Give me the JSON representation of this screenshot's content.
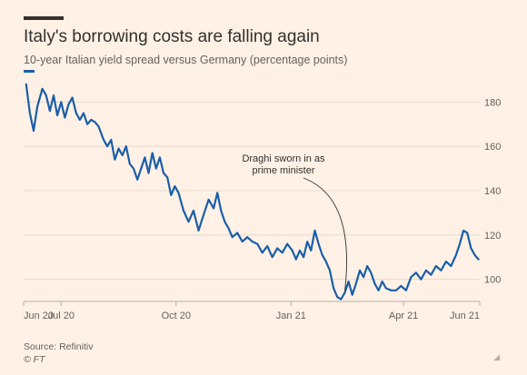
{
  "title": "Italy's borrowing costs are falling again",
  "subtitle": "10-year Italian yield spread versus Germany (percentage points)",
  "source": "Source: Refinitiv",
  "copyright": "© FT",
  "colors": {
    "line": "#1a5ea8",
    "grid": "#e6d9ce",
    "axis_text": "#66605c"
  },
  "chart_data": {
    "type": "line",
    "title": "Italy's borrowing costs are falling again",
    "subtitle": "10-year Italian yield spread versus Germany (percentage points)",
    "xlabel": "",
    "ylabel": "",
    "xlim": [
      "2020-06-01",
      "2021-06-01"
    ],
    "ylim": [
      90,
      190
    ],
    "y_ticks": [
      100,
      120,
      140,
      160,
      180
    ],
    "x_ticks": [
      {
        "label": "Jun 20",
        "date": "2020-06-01"
      },
      {
        "label": "Jul 20",
        "date": "2020-07-01"
      },
      {
        "label": "Oct 20",
        "date": "2020-10-01"
      },
      {
        "label": "Jan 21",
        "date": "2021-01-01"
      },
      {
        "label": "Apr 21",
        "date": "2021-04-01"
      },
      {
        "label": "Jun 21",
        "date": "2021-06-01"
      }
    ],
    "grid": true,
    "series": [
      {
        "color": "#1a5ea8",
        "points": [
          [
            "2020-06-03",
            188
          ],
          [
            "2020-06-06",
            175
          ],
          [
            "2020-06-09",
            167
          ],
          [
            "2020-06-12",
            178
          ],
          [
            "2020-06-16",
            186
          ],
          [
            "2020-06-19",
            183
          ],
          [
            "2020-06-22",
            176
          ],
          [
            "2020-06-25",
            183
          ],
          [
            "2020-06-28",
            174
          ],
          [
            "2020-07-01",
            180
          ],
          [
            "2020-07-04",
            173
          ],
          [
            "2020-07-07",
            179
          ],
          [
            "2020-07-10",
            182
          ],
          [
            "2020-07-13",
            175
          ],
          [
            "2020-07-16",
            172
          ],
          [
            "2020-07-19",
            175
          ],
          [
            "2020-07-22",
            170
          ],
          [
            "2020-07-25",
            172
          ],
          [
            "2020-07-28",
            171
          ],
          [
            "2020-07-31",
            169
          ],
          [
            "2020-08-04",
            163
          ],
          [
            "2020-08-07",
            160
          ],
          [
            "2020-08-10",
            163
          ],
          [
            "2020-08-13",
            154
          ],
          [
            "2020-08-16",
            159
          ],
          [
            "2020-08-19",
            156
          ],
          [
            "2020-08-22",
            160
          ],
          [
            "2020-08-25",
            152
          ],
          [
            "2020-08-28",
            150
          ],
          [
            "2020-08-31",
            145
          ],
          [
            "2020-09-03",
            150
          ],
          [
            "2020-09-06",
            155
          ],
          [
            "2020-09-09",
            148
          ],
          [
            "2020-09-12",
            157
          ],
          [
            "2020-09-15",
            150
          ],
          [
            "2020-09-18",
            155
          ],
          [
            "2020-09-21",
            148
          ],
          [
            "2020-09-24",
            146
          ],
          [
            "2020-09-27",
            138
          ],
          [
            "2020-09-30",
            142
          ],
          [
            "2020-10-03",
            139
          ],
          [
            "2020-10-07",
            131
          ],
          [
            "2020-10-11",
            126
          ],
          [
            "2020-10-15",
            131
          ],
          [
            "2020-10-19",
            122
          ],
          [
            "2020-10-23",
            129
          ],
          [
            "2020-10-27",
            136
          ],
          [
            "2020-10-31",
            132
          ],
          [
            "2020-11-03",
            139
          ],
          [
            "2020-11-06",
            131
          ],
          [
            "2020-11-09",
            126
          ],
          [
            "2020-11-12",
            123
          ],
          [
            "2020-11-15",
            119
          ],
          [
            "2020-11-19",
            121
          ],
          [
            "2020-11-23",
            117
          ],
          [
            "2020-11-27",
            119
          ],
          [
            "2020-12-01",
            117
          ],
          [
            "2020-12-05",
            116
          ],
          [
            "2020-12-09",
            112
          ],
          [
            "2020-12-13",
            115
          ],
          [
            "2020-12-17",
            110
          ],
          [
            "2020-12-21",
            114
          ],
          [
            "2020-12-25",
            112
          ],
          [
            "2020-12-29",
            116
          ],
          [
            "2021-01-02",
            113
          ],
          [
            "2021-01-05",
            109
          ],
          [
            "2021-01-08",
            113
          ],
          [
            "2021-01-11",
            110
          ],
          [
            "2021-01-14",
            117
          ],
          [
            "2021-01-17",
            113
          ],
          [
            "2021-01-20",
            122
          ],
          [
            "2021-01-23",
            116
          ],
          [
            "2021-01-26",
            111
          ],
          [
            "2021-01-29",
            108
          ],
          [
            "2021-02-01",
            104
          ],
          [
            "2021-02-04",
            96
          ],
          [
            "2021-02-07",
            92
          ],
          [
            "2021-02-10",
            91
          ],
          [
            "2021-02-13",
            94
          ],
          [
            "2021-02-16",
            99
          ],
          [
            "2021-02-19",
            93
          ],
          [
            "2021-02-22",
            98
          ],
          [
            "2021-02-25",
            104
          ],
          [
            "2021-02-28",
            101
          ],
          [
            "2021-03-03",
            106
          ],
          [
            "2021-03-06",
            103
          ],
          [
            "2021-03-09",
            98
          ],
          [
            "2021-03-12",
            95
          ],
          [
            "2021-03-15",
            99
          ],
          [
            "2021-03-18",
            96
          ],
          [
            "2021-03-22",
            95
          ],
          [
            "2021-03-26",
            95
          ],
          [
            "2021-03-30",
            97
          ],
          [
            "2021-04-03",
            95
          ],
          [
            "2021-04-07",
            101
          ],
          [
            "2021-04-11",
            103
          ],
          [
            "2021-04-15",
            100
          ],
          [
            "2021-04-19",
            104
          ],
          [
            "2021-04-23",
            102
          ],
          [
            "2021-04-27",
            106
          ],
          [
            "2021-05-01",
            104
          ],
          [
            "2021-05-05",
            108
          ],
          [
            "2021-05-09",
            106
          ],
          [
            "2021-05-13",
            111
          ],
          [
            "2021-05-16",
            116
          ],
          [
            "2021-05-19",
            122
          ],
          [
            "2021-05-22",
            121
          ],
          [
            "2021-05-25",
            114
          ],
          [
            "2021-05-28",
            111
          ],
          [
            "2021-05-31",
            109
          ]
        ]
      }
    ],
    "annotations": [
      {
        "lines": [
          "Draghi sworn in as",
          "prime minister"
        ],
        "date": "2021-02-13",
        "value": 93
      }
    ]
  }
}
